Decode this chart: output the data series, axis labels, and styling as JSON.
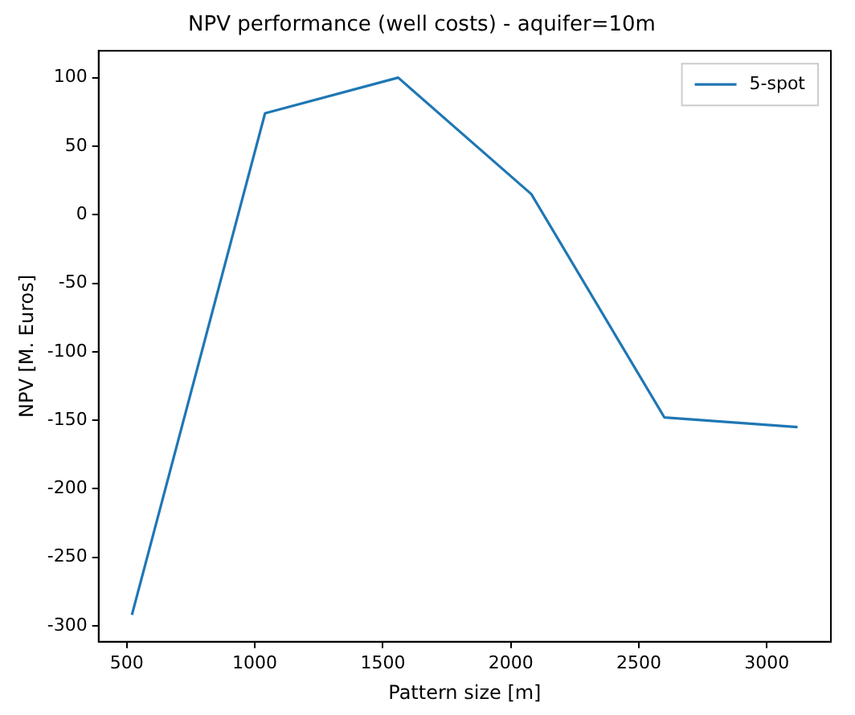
{
  "chart_data": {
    "type": "line",
    "title": "NPV performance (well costs) - aquifer=10m",
    "xlabel": "Pattern size [m]",
    "ylabel": "NPV [M. Euros]",
    "x": [
      520,
      1040,
      1560,
      2080,
      2600,
      3120
    ],
    "series": [
      {
        "name": "5-spot",
        "color": "#1f77b4",
        "values": [
          -292,
          74,
          100,
          15,
          -148,
          -155
        ]
      }
    ],
    "xlim": [
      390,
      3250
    ],
    "xticks": [
      500,
      1000,
      1500,
      2000,
      2500,
      3000
    ],
    "ylim": [
      -311.6,
      119.6
    ],
    "yticks": [
      -300,
      -250,
      -200,
      -150,
      -100,
      -50,
      0,
      50,
      100
    ],
    "grid": false,
    "legend": "top right",
    "marker": "none",
    "line_style": "solid"
  }
}
